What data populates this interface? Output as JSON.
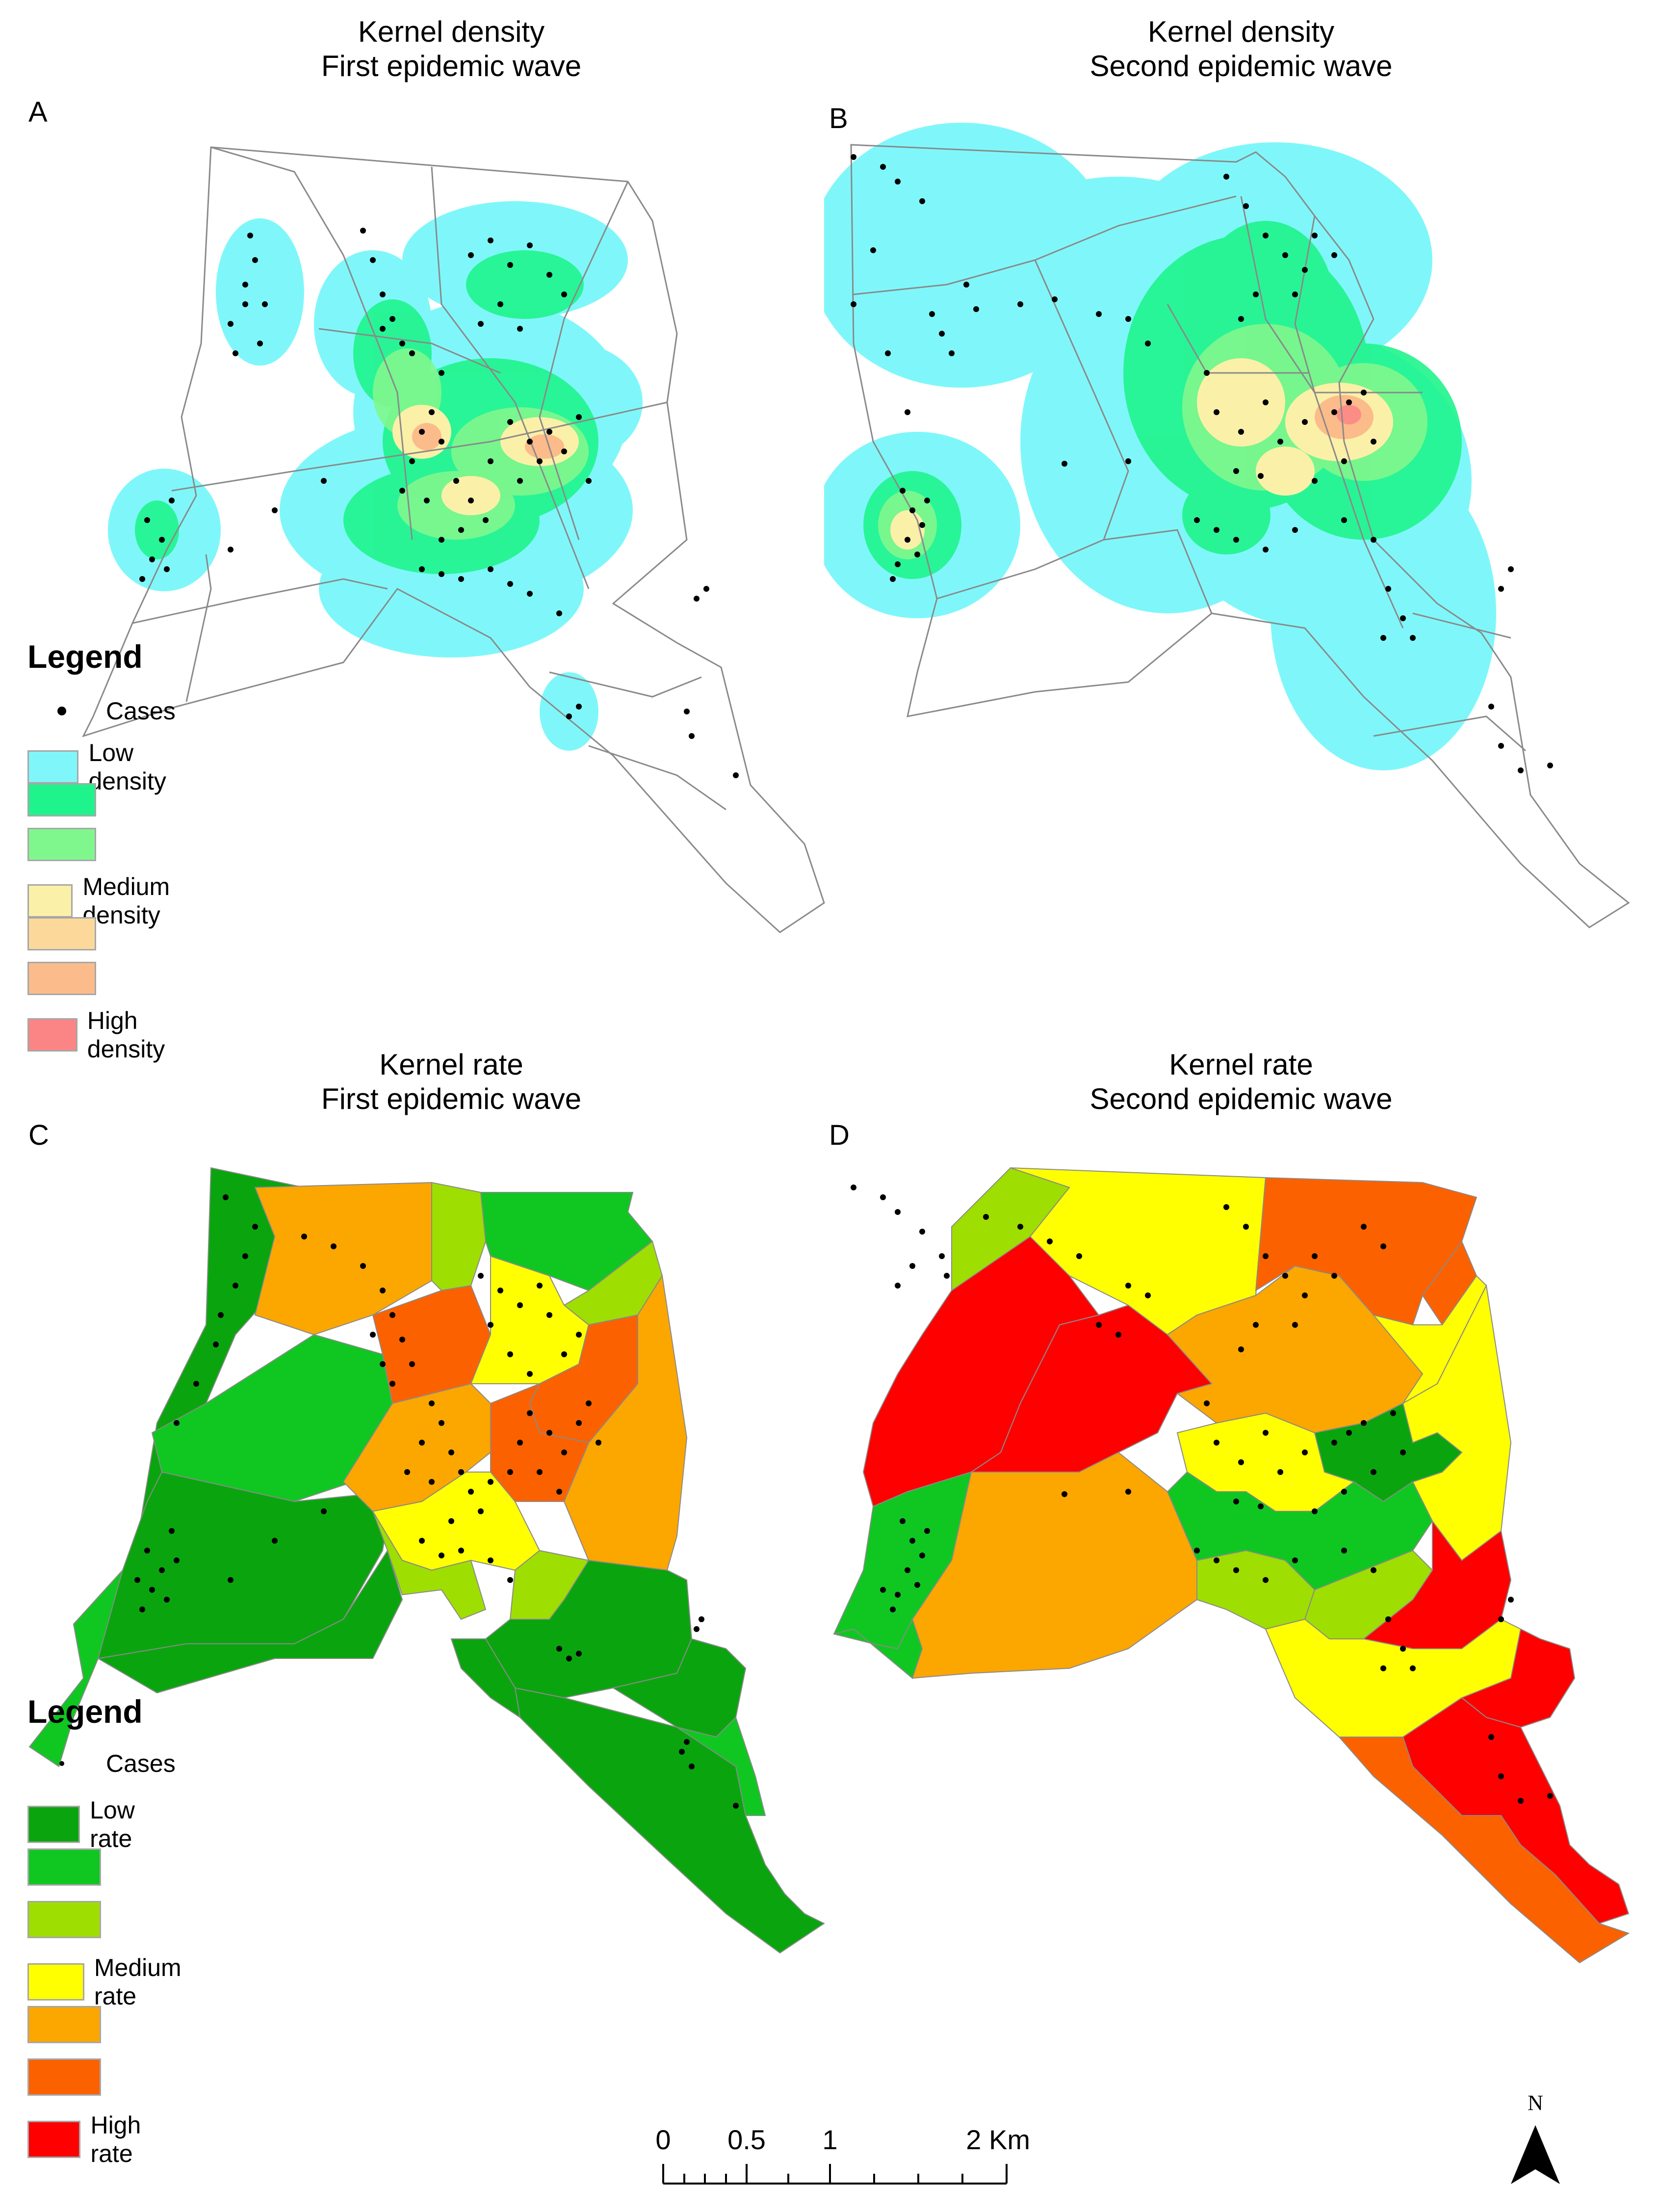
{
  "panels": [
    {
      "letter": "A",
      "title_line1": "Kernel density",
      "title_line2": "First epidemic wave"
    },
    {
      "letter": "B",
      "title_line1": "Kernel density",
      "title_line2": "Second epidemic wave"
    },
    {
      "letter": "C",
      "title_line1": "Kernel rate",
      "title_line2": "First epidemic wave"
    },
    {
      "letter": "D",
      "title_line1": "Kernel rate",
      "title_line2": "Second epidemic wave"
    }
  ],
  "legend_density": {
    "title": "Legend",
    "cases_label": "Cases",
    "classes": [
      {
        "label": "Low density",
        "color": "#7ff7fa"
      },
      {
        "label": "",
        "color": "#1ff48c"
      },
      {
        "label": "",
        "color": "#80f78d"
      },
      {
        "label": "Medium density",
        "color": "#fbf0a8"
      },
      {
        "label": "",
        "color": "#fcd99a"
      },
      {
        "label": "",
        "color": "#fcbb8a"
      },
      {
        "label": "High density",
        "color": "#fb8585"
      }
    ]
  },
  "legend_rate": {
    "title": "Legend",
    "cases_label": "Cases",
    "classes": [
      {
        "label": "Low rate",
        "color": "#0aa50e"
      },
      {
        "label": "",
        "color": "#10c721"
      },
      {
        "label": "",
        "color": "#9ede00"
      },
      {
        "label": "Medium rate",
        "color": "#ffff00"
      },
      {
        "label": "",
        "color": "#fca600"
      },
      {
        "label": "",
        "color": "#fc6100"
      },
      {
        "label": "High rate",
        "color": "#ff0000"
      }
    ]
  },
  "scale_bar": {
    "labels": [
      "0",
      "0.5",
      "1",
      "2 Km"
    ]
  },
  "north_arrow": {
    "label": "N"
  },
  "colors": {
    "boundary": "#8a8a8a",
    "case_dot": "#000000"
  }
}
